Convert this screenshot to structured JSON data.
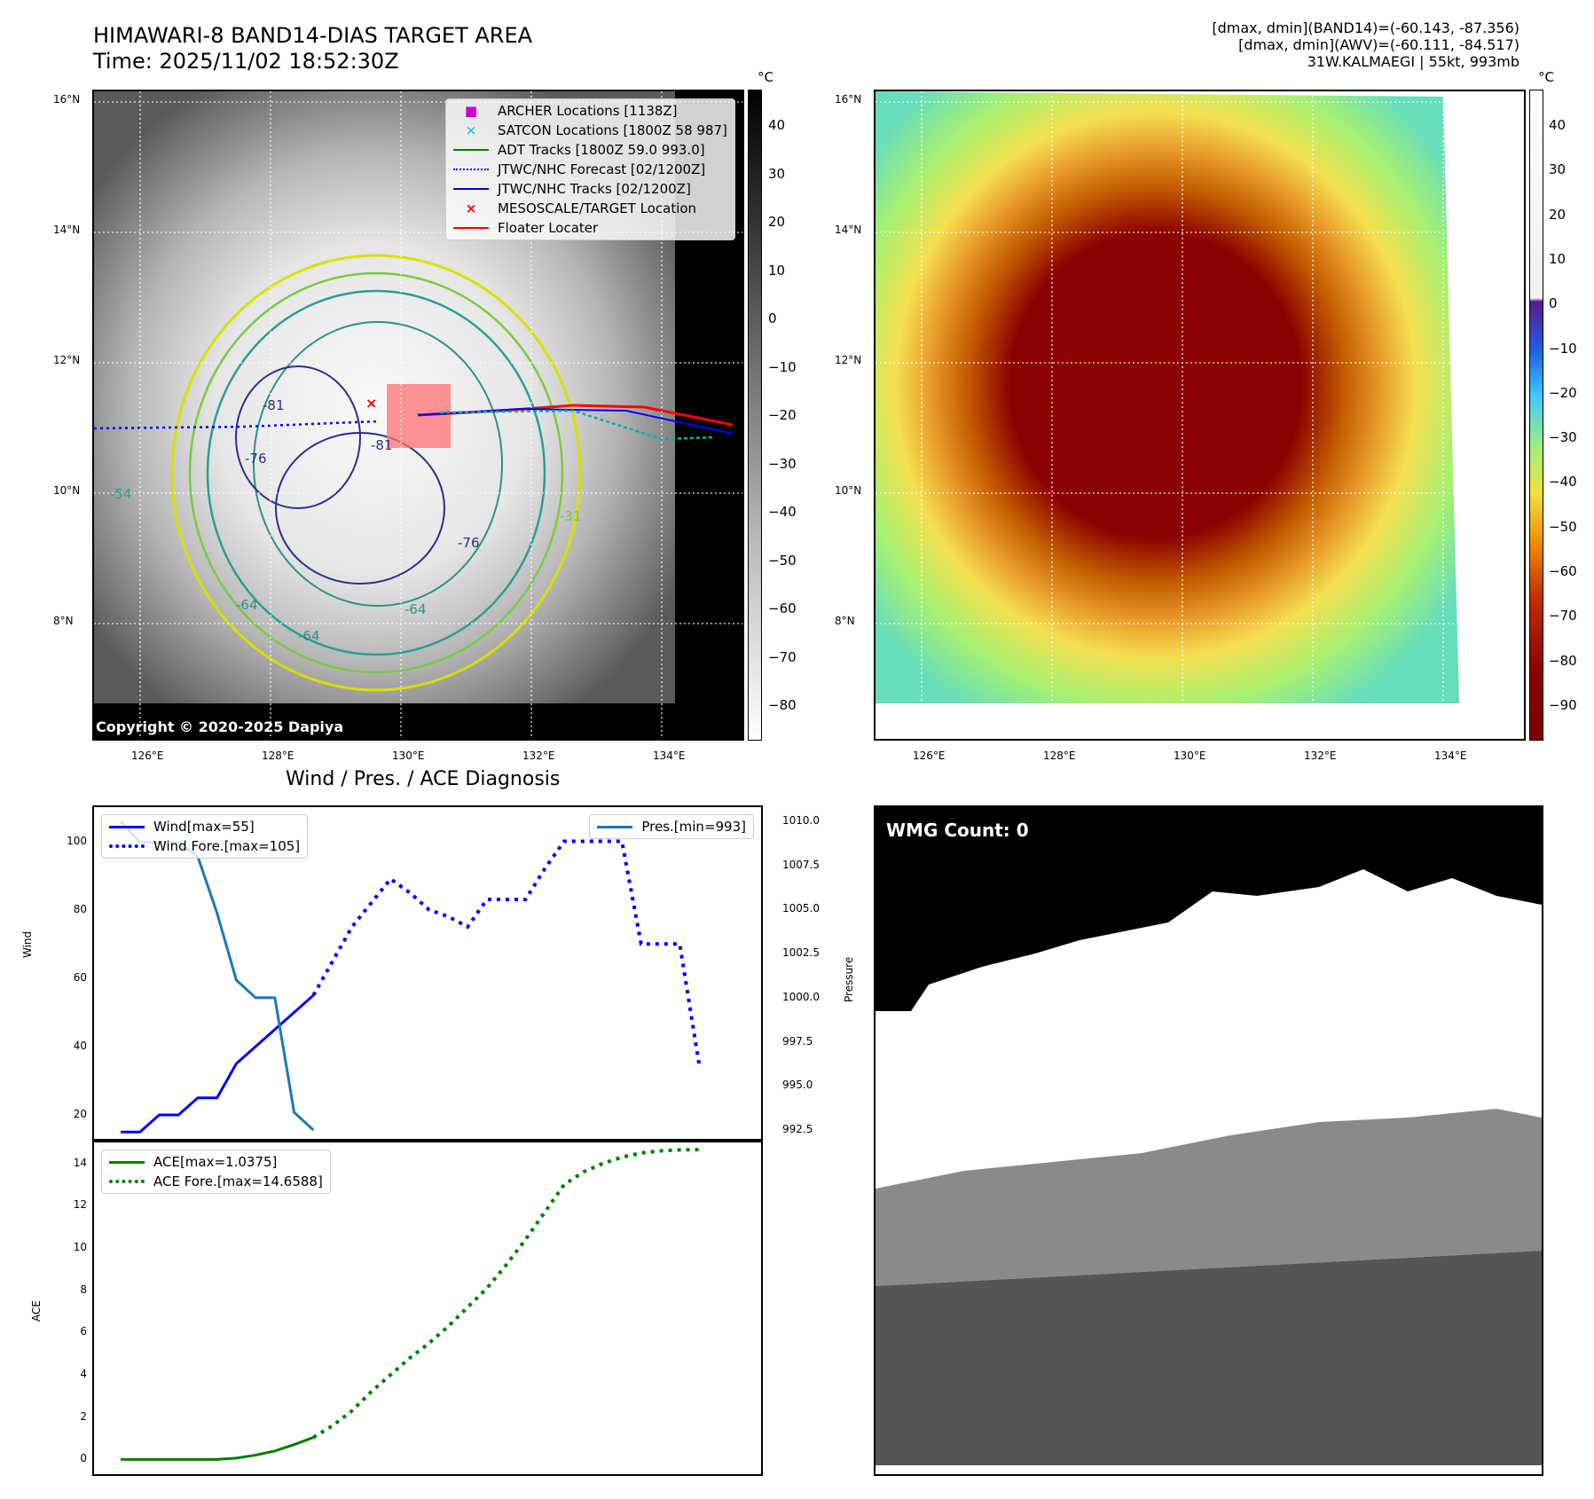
{
  "header": {
    "title_line1": "HIMAWARI-8 BAND14-DIAS TARGET AREA",
    "title_line2": "Time: 2025/11/02 18:52:30Z",
    "meta_line1": "[dmax, dmin](BAND14)=(-60.143, -87.356)",
    "meta_line2": "[dmax, dmin](AWV)=(-60.111, -84.517)",
    "meta_line3": "31W.KALMAEGI | 55kt, 993mb"
  },
  "map1": {
    "copyright": "Copyright © 2020-2025 Dapiya",
    "lat_labels": [
      "16°N",
      "14°N",
      "12°N",
      "10°N",
      "8°N"
    ],
    "lon_labels": [
      "126°E",
      "128°E",
      "130°E",
      "132°E",
      "134°E"
    ],
    "contour_labels": [
      "-81",
      "-76",
      "-81",
      "-76",
      "-64",
      "-64",
      "-64",
      "-54",
      "-31"
    ],
    "legend": [
      {
        "label": "ARCHER Locations [1138Z]",
        "color": "#cc00cc",
        "marker": "square"
      },
      {
        "label": "SATCON Locations [1800Z 58 987]",
        "color": "#00bfbf",
        "marker": "x"
      },
      {
        "label": "ADT Tracks [1800Z 59.0 993.0]",
        "color": "#008000",
        "marker": "line"
      },
      {
        "label": "JTWC/NHC Forecast [02/1200Z]",
        "color": "#0000ff",
        "marker": "dotted"
      },
      {
        "label": "JTWC/NHC Tracks [02/1200Z]",
        "color": "#0000ff",
        "marker": "line-dot"
      },
      {
        "label": "MESOSCALE/TARGET Location",
        "color": "#ff0000",
        "marker": "x"
      },
      {
        "label": "Floater Locater",
        "color": "#ff0000",
        "marker": "line"
      }
    ],
    "colorbar": {
      "unit": "°C",
      "ticks": [
        "40",
        "30",
        "20",
        "10",
        "0",
        "−10",
        "−20",
        "−30",
        "−40",
        "−50",
        "−60",
        "−70",
        "−80"
      ]
    }
  },
  "map2": {
    "lat_labels": [
      "16°N",
      "14°N",
      "12°N",
      "10°N",
      "8°N"
    ],
    "lon_labels": [
      "126°E",
      "128°E",
      "130°E",
      "132°E",
      "134°E"
    ],
    "colorbar": {
      "unit": "°C",
      "ticks": [
        "40",
        "30",
        "20",
        "10",
        "0",
        "−10",
        "−20",
        "−30",
        "−40",
        "−50",
        "−60",
        "−70",
        "−80",
        "−90"
      ]
    }
  },
  "wmg": {
    "label": "WMG Count: 0"
  },
  "chart_data": [
    {
      "type": "line",
      "title": "Wind / Pres. / ACE Diagnosis",
      "ylabel": "Wind",
      "ylabel_right": "Pressure",
      "ylim": [
        13,
        110
      ],
      "ylim_right": [
        992.0,
        1010.8
      ],
      "yticks": [
        20,
        40,
        60,
        80,
        100
      ],
      "yticks_right": [
        "992.5",
        "995.0",
        "997.5",
        "1000.0",
        "1002.5",
        "1005.0",
        "1007.5",
        "1010.0"
      ],
      "series": [
        {
          "name": "Wind[max=55]",
          "style": "solid",
          "color": "#0000ff",
          "x": [
            0,
            1,
            2,
            3,
            4,
            5,
            6,
            7,
            8,
            9,
            10
          ],
          "values": [
            15,
            15,
            20,
            20,
            25,
            25,
            35,
            40,
            45,
            50,
            55
          ]
        },
        {
          "name": "Wind Fore.[max=105]",
          "style": "dotted",
          "color": "#0000ff",
          "x": [
            10,
            11,
            12,
            13,
            14,
            15,
            16,
            17,
            18,
            19,
            20,
            21,
            22,
            23,
            24,
            25,
            26,
            27,
            28,
            29,
            30
          ],
          "values": [
            55,
            65,
            75,
            82,
            89,
            85,
            80,
            78,
            75,
            83,
            83,
            83,
            92,
            100,
            100,
            100,
            100,
            70,
            70,
            70,
            35
          ]
        },
        {
          "name": "Pres.[min=993]",
          "style": "solid",
          "color": "#1f77b4",
          "axis": "right",
          "x": [
            0,
            1,
            2,
            3,
            4,
            5,
            6,
            7,
            8,
            9,
            10
          ],
          "values": [
            1010,
            1008.8,
            1008.8,
            1008.8,
            1008,
            1004.8,
            1001,
            1000,
            1000,
            993.5,
            992.5
          ]
        }
      ]
    },
    {
      "type": "line",
      "ylabel": "ACE",
      "ylim": [
        -0.7,
        15
      ],
      "yticks": [
        0,
        2,
        4,
        6,
        8,
        10,
        12,
        14
      ],
      "series": [
        {
          "name": "ACE[max=1.0375]",
          "style": "solid",
          "color": "#008000",
          "x": [
            0,
            1,
            2,
            3,
            4,
            5,
            6,
            7,
            8,
            9,
            10
          ],
          "values": [
            0,
            0,
            0,
            0,
            0,
            0,
            0.06,
            0.2,
            0.4,
            0.7,
            1.04
          ]
        },
        {
          "name": "ACE Fore.[max=14.6588]",
          "style": "dotted",
          "color": "#008000",
          "x": [
            10,
            11,
            12,
            13,
            14,
            15,
            16,
            17,
            18,
            19,
            20,
            21,
            22,
            23,
            24,
            25,
            26,
            27,
            28,
            29,
            30
          ],
          "values": [
            1.04,
            1.6,
            2.3,
            3.2,
            4.0,
            4.8,
            5.5,
            6.3,
            7.2,
            8.1,
            9.2,
            10.4,
            11.7,
            13.0,
            13.6,
            14.0,
            14.3,
            14.5,
            14.6,
            14.65,
            14.66
          ]
        }
      ]
    }
  ]
}
